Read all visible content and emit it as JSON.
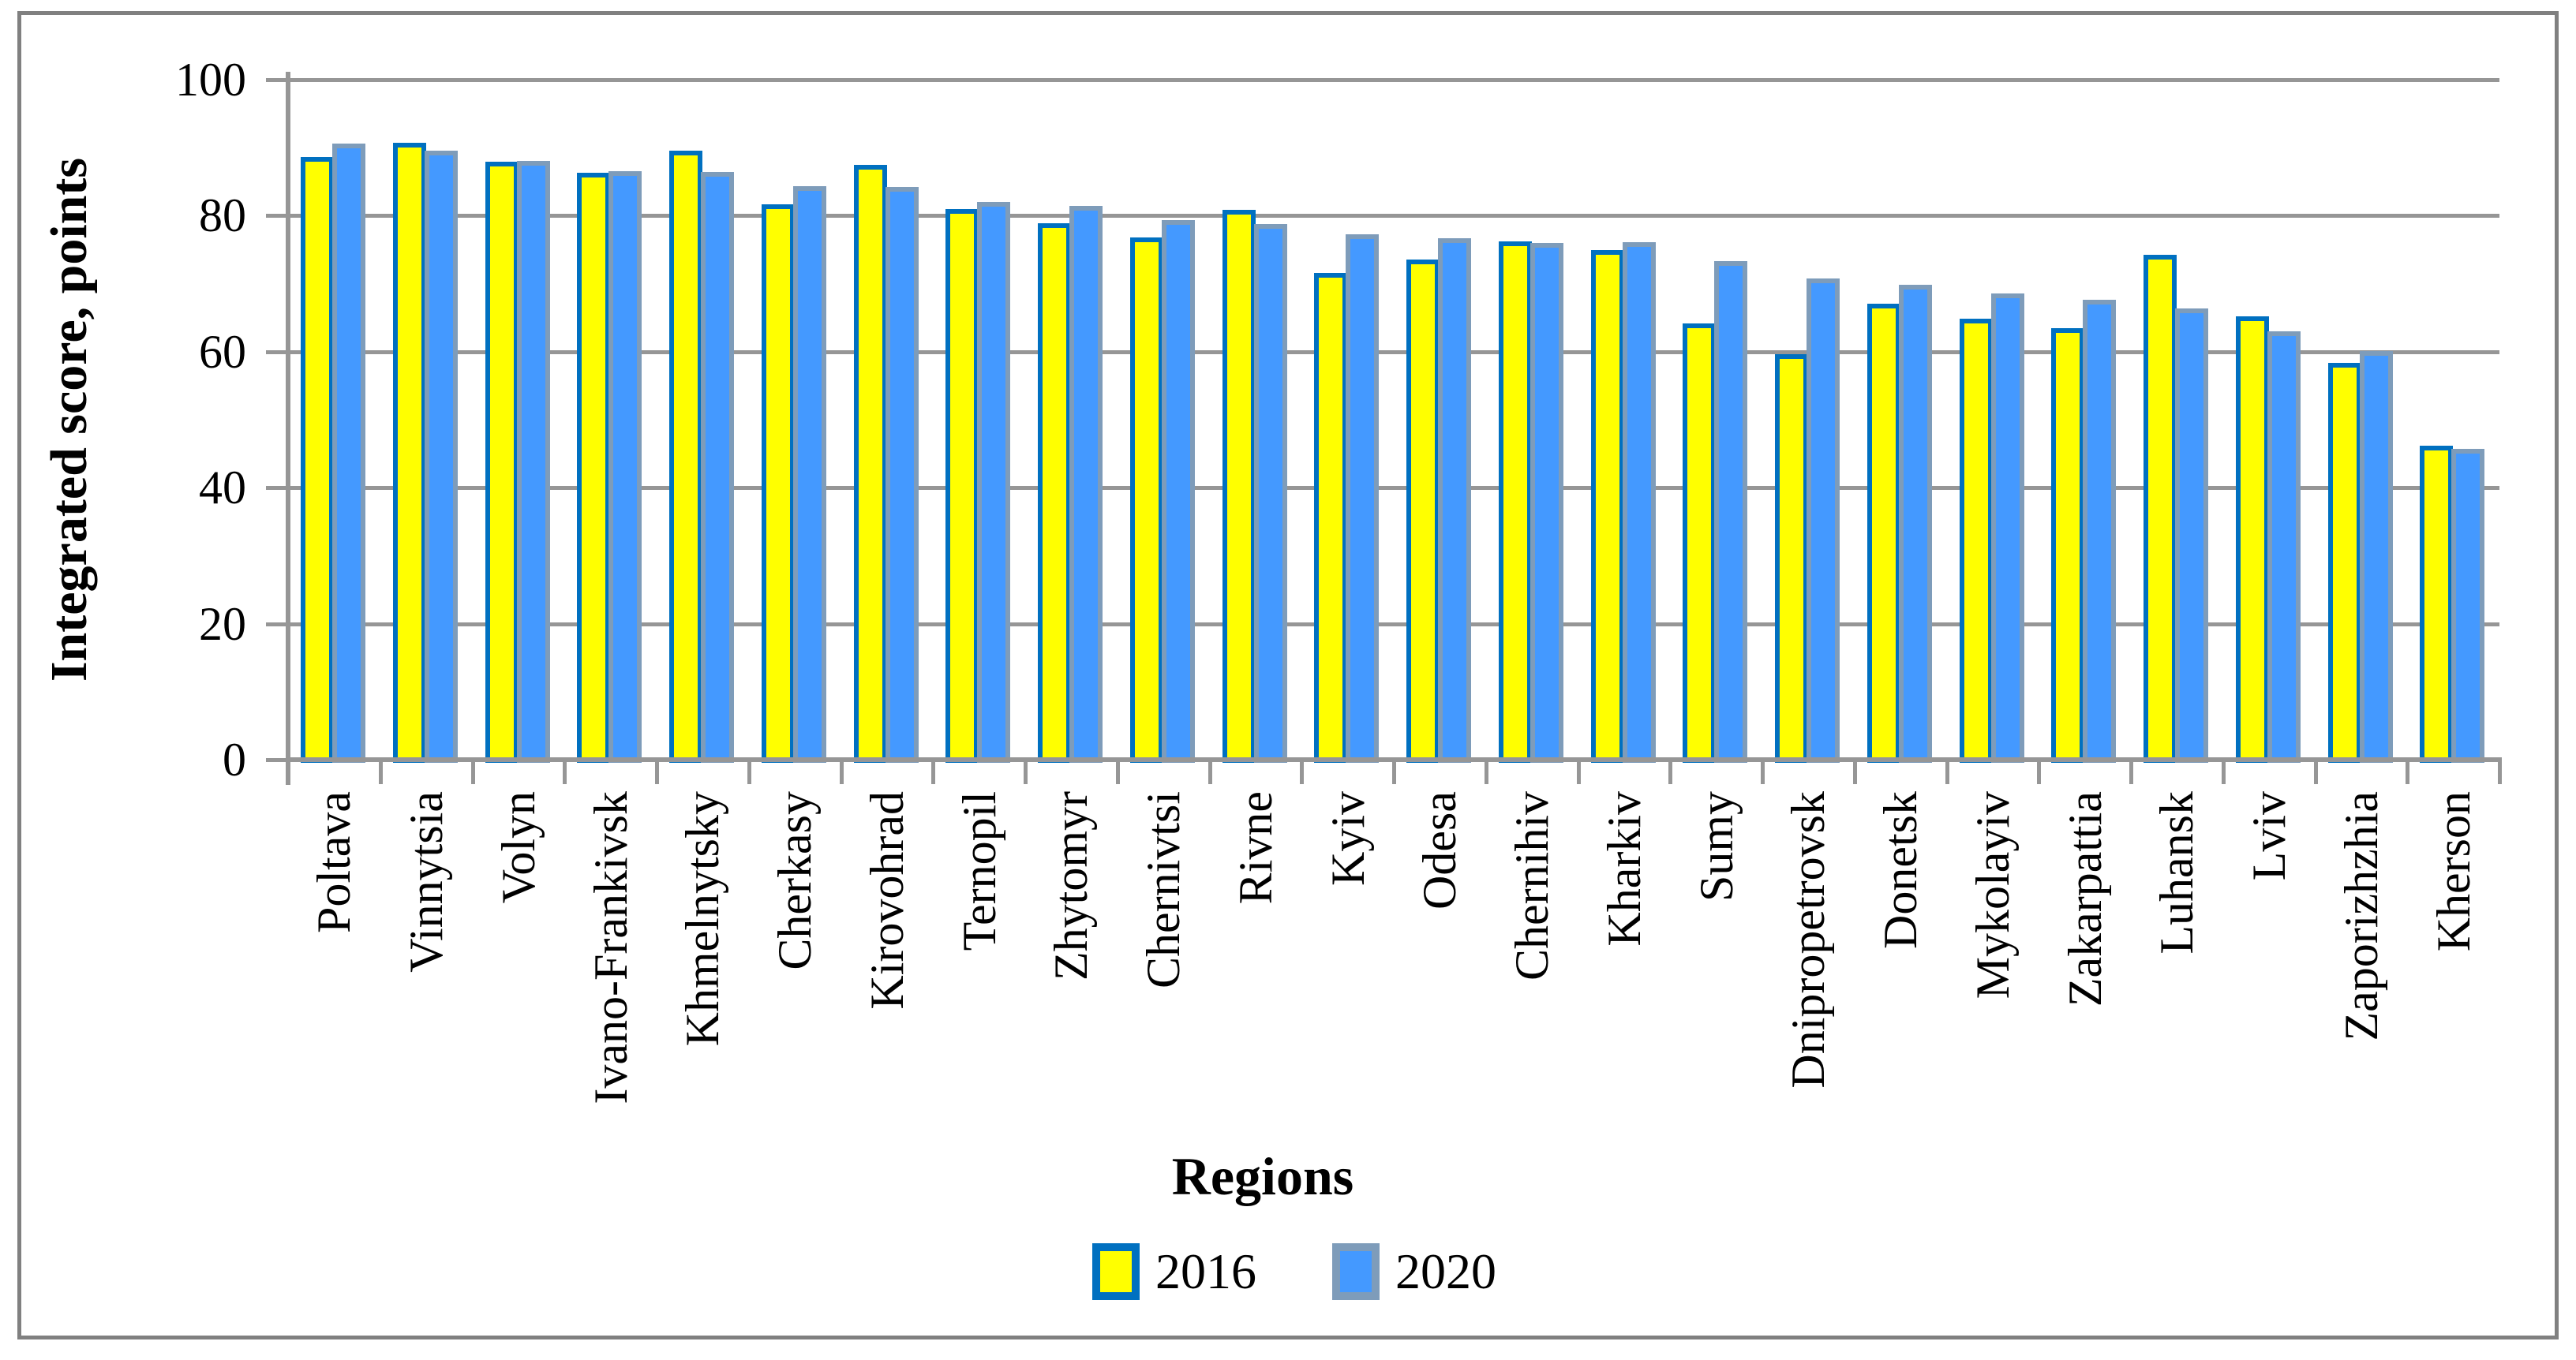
{
  "chart_data": {
    "type": "bar",
    "title": "",
    "xlabel": "Regions",
    "ylabel": "Integrated score, points",
    "ylim": [
      0,
      100
    ],
    "yticks": [
      0,
      20,
      40,
      60,
      80,
      100
    ],
    "grid": true,
    "legend_position": "bottom",
    "categories": [
      "Poltava",
      "Vinnytsia",
      "Volyn",
      "Ivano-Frankivsk",
      "Khmelnytsky",
      "Cherkasy",
      "Kirovohrad",
      "Ternopil",
      "Zhytomyr",
      "Chernivtsi",
      "Rivne",
      "Kyiv",
      "Odesa",
      "Chernihiv",
      "Kharkiv",
      "Sumy",
      "Dnipropetrovsk",
      "Donetsk",
      "Mykolayiv",
      "Zakarpattia",
      "Luhansk",
      "Lviv",
      "Zaporizhzhia",
      "Kherson"
    ],
    "series": [
      {
        "name": "2016",
        "fill_color": "#FFFF00",
        "border_color": "#0070C0",
        "values": [
          88.6,
          90.7,
          87.9,
          86.3,
          89.6,
          81.7,
          87.5,
          81.0,
          78.9,
          76.8,
          80.9,
          71.6,
          73.5,
          76.2,
          75.0,
          64.1,
          59.6,
          67.0,
          64.9,
          63.5,
          74.3,
          65.2,
          58.4,
          46.2
        ]
      },
      {
        "name": "2020",
        "fill_color": "#4499FF",
        "border_color": "#7E9CBA",
        "values": [
          90.6,
          89.6,
          88.0,
          86.6,
          86.4,
          84.3,
          84.2,
          82.0,
          81.4,
          79.4,
          78.8,
          77.3,
          76.7,
          76.0,
          76.1,
          73.3,
          70.8,
          69.8,
          68.6,
          67.6,
          66.3,
          63.0,
          60.1,
          45.7
        ]
      }
    ]
  },
  "colors": {
    "gridline": "#969696",
    "axis": "#969696",
    "frame": "#808080",
    "background": "#FFFFFF",
    "text": "#000000"
  }
}
